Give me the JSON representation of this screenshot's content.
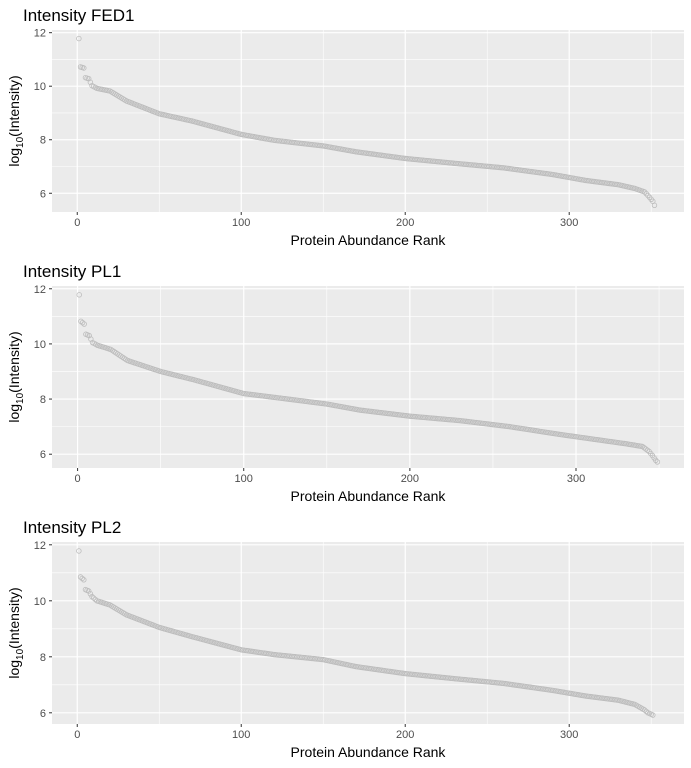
{
  "chart_data": [
    {
      "type": "scatter",
      "title": "Intensity FED1",
      "xlabel": "Protein Abundance Rank",
      "ylabel_prefix": "log",
      "ylabel_subscript": "10",
      "ylabel_suffix": "(Intensity)",
      "x_ticks": [
        0,
        100,
        200,
        300
      ],
      "x_tick_labels": [
        "0",
        "100",
        "200",
        "300"
      ],
      "y_ticks": [
        6,
        8,
        10,
        12
      ],
      "y_tick_labels": [
        "6",
        "8",
        "10",
        "12"
      ],
      "xlim": [
        -15.4,
        370
      ],
      "ylim": [
        5.3,
        12.1
      ],
      "n_points": 352,
      "point_color": "#bdbdbd",
      "panel_background": "#ebebeb",
      "gridline_color": "#ffffff",
      "curve_anchors": [
        [
          1,
          11.78
        ],
        [
          2,
          10.72
        ],
        [
          4,
          10.68
        ],
        [
          5,
          10.32
        ],
        [
          7,
          10.28
        ],
        [
          9,
          10.02
        ],
        [
          12,
          9.92
        ],
        [
          20,
          9.82
        ],
        [
          30,
          9.45
        ],
        [
          50,
          8.97
        ],
        [
          70,
          8.7
        ],
        [
          100,
          8.2
        ],
        [
          120,
          7.98
        ],
        [
          150,
          7.77
        ],
        [
          170,
          7.55
        ],
        [
          200,
          7.3
        ],
        [
          230,
          7.12
        ],
        [
          260,
          6.95
        ],
        [
          290,
          6.7
        ],
        [
          310,
          6.48
        ],
        [
          330,
          6.32
        ],
        [
          340,
          6.18
        ],
        [
          346,
          6.05
        ],
        [
          349,
          5.85
        ],
        [
          351,
          5.7
        ],
        [
          352,
          5.55
        ]
      ]
    },
    {
      "type": "scatter",
      "title": "Intensity PL1",
      "xlabel": "Protein Abundance Rank",
      "ylabel_prefix": "log",
      "ylabel_subscript": "10",
      "ylabel_suffix": "(Intensity)",
      "x_ticks": [
        0,
        100,
        200,
        300
      ],
      "x_tick_labels": [
        "0",
        "100",
        "200",
        "300"
      ],
      "y_ticks": [
        6,
        8,
        10,
        12
      ],
      "y_tick_labels": [
        "6",
        "8",
        "10",
        "12"
      ],
      "xlim": [
        -15.4,
        365
      ],
      "ylim": [
        5.5,
        12.1
      ],
      "n_points": 349,
      "point_color": "#bdbdbd",
      "panel_background": "#ebebeb",
      "gridline_color": "#ffffff",
      "curve_anchors": [
        [
          1,
          11.78
        ],
        [
          2,
          10.82
        ],
        [
          4,
          10.72
        ],
        [
          5,
          10.35
        ],
        [
          7,
          10.3
        ],
        [
          9,
          10.05
        ],
        [
          12,
          9.95
        ],
        [
          20,
          9.8
        ],
        [
          30,
          9.4
        ],
        [
          50,
          9.0
        ],
        [
          70,
          8.7
        ],
        [
          100,
          8.2
        ],
        [
          120,
          8.05
        ],
        [
          150,
          7.82
        ],
        [
          170,
          7.6
        ],
        [
          200,
          7.38
        ],
        [
          230,
          7.22
        ],
        [
          260,
          7.0
        ],
        [
          290,
          6.72
        ],
        [
          310,
          6.55
        ],
        [
          330,
          6.38
        ],
        [
          340,
          6.28
        ],
        [
          344,
          6.1
        ],
        [
          346,
          5.95
        ],
        [
          348,
          5.78
        ],
        [
          349,
          5.72
        ]
      ]
    },
    {
      "type": "scatter",
      "title": "Intensity PL2",
      "xlabel": "Protein Abundance Rank",
      "ylabel_prefix": "log",
      "ylabel_subscript": "10",
      "ylabel_suffix": "(Intensity)",
      "x_ticks": [
        0,
        100,
        200,
        300
      ],
      "x_tick_labels": [
        "0",
        "100",
        "200",
        "300"
      ],
      "y_ticks": [
        6,
        8,
        10,
        12
      ],
      "y_tick_labels": [
        "6",
        "8",
        "10",
        "12"
      ],
      "xlim": [
        -15.4,
        370
      ],
      "ylim": [
        5.6,
        12.1
      ],
      "n_points": 351,
      "point_color": "#bdbdbd",
      "panel_background": "#ebebeb",
      "gridline_color": "#ffffff",
      "curve_anchors": [
        [
          1,
          11.78
        ],
        [
          2,
          10.85
        ],
        [
          4,
          10.75
        ],
        [
          5,
          10.4
        ],
        [
          7,
          10.35
        ],
        [
          9,
          10.15
        ],
        [
          12,
          10.0
        ],
        [
          20,
          9.85
        ],
        [
          30,
          9.5
        ],
        [
          50,
          9.05
        ],
        [
          70,
          8.72
        ],
        [
          100,
          8.25
        ],
        [
          120,
          8.08
        ],
        [
          150,
          7.9
        ],
        [
          170,
          7.65
        ],
        [
          200,
          7.4
        ],
        [
          230,
          7.22
        ],
        [
          260,
          7.05
        ],
        [
          290,
          6.8
        ],
        [
          310,
          6.6
        ],
        [
          330,
          6.45
        ],
        [
          340,
          6.3
        ],
        [
          346,
          6.1
        ],
        [
          348,
          6.0
        ],
        [
          350,
          5.95
        ],
        [
          351,
          5.92
        ]
      ]
    }
  ]
}
